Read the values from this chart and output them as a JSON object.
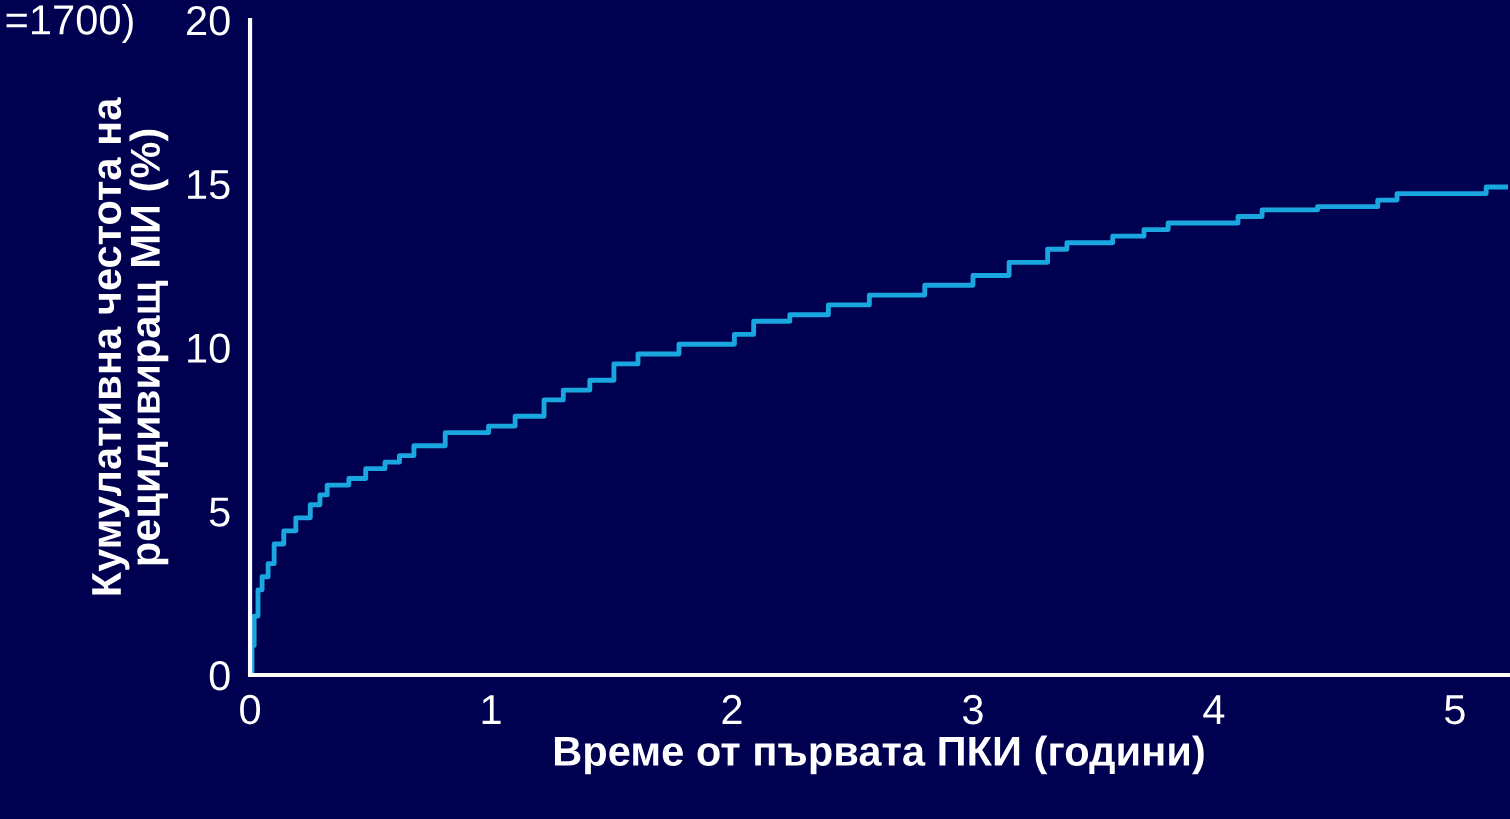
{
  "chart_data": {
    "type": "step",
    "xlabel": "Време от първата ПКИ (години)",
    "ylabel": "Кумулативна честота на\nрецидивиращ МИ (%)",
    "annotations": [
      "=1700)"
    ],
    "x": [
      0,
      0.008,
      0.017,
      0.033,
      0.05,
      0.075,
      0.1,
      0.14,
      0.19,
      0.25,
      0.29,
      0.32,
      0.41,
      0.48,
      0.56,
      0.62,
      0.68,
      0.81,
      0.99,
      1.1,
      1.22,
      1.3,
      1.41,
      1.51,
      1.61,
      1.78,
      2.01,
      2.09,
      2.24,
      2.4,
      2.57,
      2.8,
      3.0,
      3.15,
      3.31,
      3.39,
      3.58,
      3.71,
      3.81,
      4.1,
      4.2,
      4.43,
      4.68,
      4.76,
      5.13,
      5.22
    ],
    "series": [
      {
        "color": "#1aa7e0",
        "values": [
          0,
          0.9,
          1.8,
          2.6,
          3.0,
          3.4,
          4.0,
          4.4,
          4.8,
          5.2,
          5.5,
          5.8,
          6.0,
          6.3,
          6.5,
          6.7,
          7.0,
          7.4,
          7.6,
          7.9,
          8.4,
          8.7,
          9.0,
          9.5,
          9.8,
          10.1,
          10.4,
          10.8,
          11.0,
          11.3,
          11.6,
          11.9,
          12.2,
          12.6,
          13.0,
          13.2,
          13.4,
          13.6,
          13.8,
          14.0,
          14.2,
          14.3,
          14.5,
          14.7,
          14.9,
          14.9
        ]
      }
    ],
    "xlim": [
      0,
      5.22
    ],
    "ylim": [
      0,
      20
    ],
    "xticks": [
      0,
      1,
      2,
      3,
      4,
      5
    ],
    "yticks": [
      0,
      5,
      10,
      15,
      20
    ],
    "grid": false,
    "line_style": "solid"
  }
}
